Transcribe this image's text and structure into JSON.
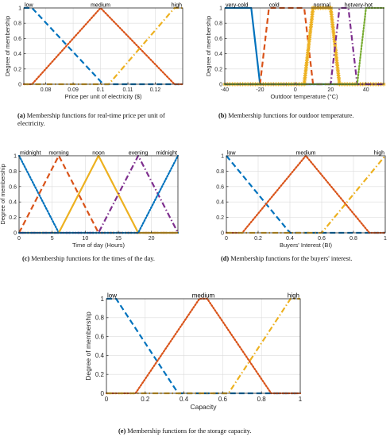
{
  "figure": {
    "panels": [
      {
        "id": "a",
        "caption_label": "(a)",
        "caption_text": "Membership functions for real-time price per unit of electricity.",
        "caption_lines": [
          "(a) Membership functions for real-time price per unit of",
          "electricity."
        ],
        "chart_data": {
          "type": "line",
          "xlabel": "Price per unit of electricity ($)",
          "ylabel": "Degree of membership",
          "xlim": [
            0.072,
            0.13
          ],
          "ylim": [
            0,
            1
          ],
          "xticks": [
            0.08,
            0.09,
            0.1,
            0.11,
            0.12
          ],
          "xtick_labels": [
            "0.08",
            "0.09",
            "0.1",
            "0.11",
            "0.12"
          ],
          "yticks": [
            0,
            0.2,
            0.4,
            0.6,
            0.8,
            1
          ],
          "ytick_labels": [
            "0",
            "0.2",
            "0.4",
            "0.6",
            "0.8",
            "1"
          ],
          "grid": true,
          "legend": "none",
          "series": [
            {
              "name": "low",
              "color": "#0072BD",
              "style": "dash",
              "x": [
                0.072,
                0.075,
                0.101,
                0.13
              ],
              "y": [
                1,
                1,
                0,
                0
              ]
            },
            {
              "name": "medium",
              "color": "#D95319",
              "style": "dot",
              "x": [
                0.072,
                0.075,
                0.1,
                0.1,
                0.127,
                0.13
              ],
              "y": [
                0,
                0,
                1,
                1,
                0,
                0
              ]
            },
            {
              "name": "high",
              "color": "#EDB120",
              "style": "dashdot",
              "x": [
                0.072,
                0.103,
                0.127,
                0.13
              ],
              "y": [
                0,
                0,
                1,
                1
              ]
            }
          ],
          "annotations": [
            {
              "text": "low",
              "x": 0.072,
              "y": 1
            },
            {
              "text": "medium",
              "x": 0.1,
              "y": 1
            },
            {
              "text": "high",
              "x": 0.127,
              "y": 1
            }
          ]
        }
      },
      {
        "id": "b",
        "caption_label": "(b)",
        "caption_text": "Membership functions for outdoor temperature.",
        "caption_lines": [
          "(b) Membership functions for outdoor temperature."
        ],
        "chart_data": {
          "type": "line",
          "xlabel": "Outdoor temperature (°C)",
          "ylabel": "Degree of membership",
          "xlim": [
            -40,
            50
          ],
          "ylim": [
            0,
            1
          ],
          "xticks": [
            -40,
            -20,
            0,
            20,
            40
          ],
          "xtick_labels": [
            "-40",
            "-20",
            "0",
            "20",
            "40"
          ],
          "yticks": [
            0,
            0.2,
            0.4,
            0.6,
            0.8,
            1
          ],
          "ytick_labels": [
            "0",
            "0.2",
            "0.4",
            "0.6",
            "0.8",
            "1"
          ],
          "grid": true,
          "legend": "none",
          "series": [
            {
              "name": "very-cold",
              "color": "#0072BD",
              "style": "solid",
              "x": [
                -40,
                -25,
                -20,
                50
              ],
              "y": [
                1,
                1,
                0,
                0
              ]
            },
            {
              "name": "cold",
              "color": "#D95319",
              "style": "dash",
              "x": [
                -40,
                -20,
                -15,
                5,
                10,
                50
              ],
              "y": [
                0,
                0,
                1,
                1,
                0,
                0
              ]
            },
            {
              "name": "normal",
              "color": "#EDB120",
              "style": "star",
              "x": [
                -40,
                5,
                10,
                20,
                25,
                50
              ],
              "y": [
                0,
                0,
                1,
                1,
                0,
                0
              ]
            },
            {
              "name": "hot",
              "color": "#7E2F8E",
              "style": "dashdot",
              "x": [
                -40,
                20,
                25,
                30,
                35,
                50
              ],
              "y": [
                0,
                0,
                1,
                1,
                0,
                0
              ]
            },
            {
              "name": "very-hot",
              "color": "#77AC30",
              "style": "dot",
              "x": [
                -40,
                35,
                40,
                50
              ],
              "y": [
                0,
                0,
                1,
                1
              ]
            }
          ],
          "annotations": [
            {
              "text": "very-cold",
              "x": -40,
              "y": 1
            },
            {
              "text": "cold",
              "x": -12,
              "y": 1
            },
            {
              "text": "normal",
              "x": 15,
              "y": 1
            },
            {
              "text": "hot",
              "x": 30,
              "y": 1
            },
            {
              "text": "very-hot",
              "x": 38,
              "y": 1
            }
          ]
        }
      },
      {
        "id": "c",
        "caption_label": "(c)",
        "caption_text": "Membership functions for the times of the day.",
        "caption_lines": [
          "(c) Membership functions for the times of the day."
        ],
        "chart_data": {
          "type": "line",
          "xlabel": "Time of day (Hours)",
          "ylabel": "Degree of membership",
          "xlim": [
            0,
            24
          ],
          "ylim": [
            0,
            1
          ],
          "xticks": [
            0,
            5,
            10,
            15,
            20
          ],
          "xtick_labels": [
            "0",
            "5",
            "10",
            "15",
            "20"
          ],
          "yticks": [
            0,
            0.2,
            0.4,
            0.6,
            0.8,
            1
          ],
          "ytick_labels": [
            "0",
            "0.2",
            "0.4",
            "0.6",
            "0.8",
            "1"
          ],
          "grid": true,
          "legend": "none",
          "series": [
            {
              "name": "midnight (early)",
              "color": "#0072BD",
              "style": "dot",
              "x": [
                0,
                6,
                24
              ],
              "y": [
                1,
                0,
                0
              ]
            },
            {
              "name": "morning",
              "color": "#D95319",
              "style": "dash",
              "x": [
                0,
                6,
                12,
                24
              ],
              "y": [
                0,
                1,
                0,
                0
              ]
            },
            {
              "name": "noon",
              "color": "#EDB120",
              "style": "solid",
              "x": [
                0,
                6,
                12,
                18,
                24
              ],
              "y": [
                0,
                0,
                1,
                0,
                0
              ]
            },
            {
              "name": "evening",
              "color": "#7E2F8E",
              "style": "dashdot",
              "x": [
                0,
                12,
                18,
                24
              ],
              "y": [
                0,
                0,
                1,
                0
              ]
            },
            {
              "name": "midnight (late)",
              "color": "#0072BD",
              "style": "dot",
              "x": [
                0,
                18,
                24
              ],
              "y": [
                0,
                0,
                1
              ]
            }
          ],
          "annotations": [
            {
              "text": "midnight",
              "x": 0,
              "y": 1
            },
            {
              "text": "morning",
              "x": 6,
              "y": 1
            },
            {
              "text": "noon",
              "x": 12,
              "y": 1
            },
            {
              "text": "evening",
              "x": 18,
              "y": 1
            },
            {
              "text": "midnight",
              "x": 24,
              "y": 1
            }
          ]
        }
      },
      {
        "id": "d",
        "caption_label": "(d)",
        "caption_text": "Membership functions for the buyers' interest.",
        "caption_lines": [
          "(d) Membership functions for the buyers' interest."
        ],
        "chart_data": {
          "type": "line",
          "xlabel": "Buyers' Interest (BI)",
          "ylabel": "",
          "xlim": [
            0,
            1
          ],
          "ylim": [
            0,
            1
          ],
          "xticks": [
            0,
            0.2,
            0.4,
            0.6,
            0.8,
            1
          ],
          "xtick_labels": [
            "0",
            "0.2",
            "0.4",
            "0.6",
            "0.8",
            "1"
          ],
          "yticks": [
            0,
            0.2,
            0.4,
            0.6,
            0.8,
            1
          ],
          "ytick_labels": [
            "0",
            "0.2",
            "0.4",
            "0.6",
            "0.8",
            "1"
          ],
          "grid": true,
          "legend": "none",
          "series": [
            {
              "name": "low",
              "color": "#0072BD",
              "style": "dash",
              "x": [
                0,
                0.4,
                1
              ],
              "y": [
                1,
                0,
                0
              ]
            },
            {
              "name": "medium",
              "color": "#D95319",
              "style": "dot",
              "x": [
                0,
                0.1,
                0.5,
                0.9,
                1
              ],
              "y": [
                0,
                0,
                1,
                0,
                0
              ]
            },
            {
              "name": "high",
              "color": "#EDB120",
              "style": "dashdot",
              "x": [
                0,
                0.6,
                1
              ],
              "y": [
                0,
                0,
                1
              ]
            }
          ],
          "annotations": [
            {
              "text": "low",
              "x": 0,
              "y": 1
            },
            {
              "text": "medium",
              "x": 0.5,
              "y": 1
            },
            {
              "text": "high",
              "x": 1,
              "y": 1
            }
          ]
        }
      },
      {
        "id": "e",
        "caption_label": "(e)",
        "caption_text": "Membership functions for the storage capacity.",
        "caption_lines": [
          "(e) Membership functions for the storage capacity."
        ],
        "chart_data": {
          "type": "line",
          "xlabel": "Capacity",
          "ylabel": "Degree of membership",
          "xlim": [
            0,
            1
          ],
          "ylim": [
            0,
            1
          ],
          "xticks": [
            0,
            0.2,
            0.4,
            0.6,
            0.8,
            1
          ],
          "xtick_labels": [
            "0",
            "0.2",
            "0.4",
            "0.6",
            "0.8",
            "1"
          ],
          "yticks": [
            0,
            0.2,
            0.4,
            0.6,
            0.8,
            1
          ],
          "ytick_labels": [
            "0",
            "0.2",
            "0.4",
            "0.6",
            "0.8",
            "1"
          ],
          "grid": true,
          "legend": "none",
          "series": [
            {
              "name": "low",
              "color": "#0072BD",
              "style": "dash",
              "x": [
                0,
                0.05,
                0.37,
                1
              ],
              "y": [
                1,
                1,
                0,
                0
              ]
            },
            {
              "name": "medium",
              "color": "#D95319",
              "style": "dot",
              "x": [
                0,
                0.15,
                0.48,
                0.52,
                0.85,
                1
              ],
              "y": [
                0,
                0,
                1,
                1,
                0,
                0
              ]
            },
            {
              "name": "high",
              "color": "#EDB120",
              "style": "dashdot",
              "x": [
                0,
                0.63,
                0.95,
                1
              ],
              "y": [
                0,
                0,
                1,
                1
              ]
            }
          ],
          "annotations": [
            {
              "text": "low",
              "x": 0,
              "y": 1
            },
            {
              "text": "medium",
              "x": 0.5,
              "y": 1
            },
            {
              "text": "high",
              "x": 0.97,
              "y": 1
            }
          ]
        }
      }
    ]
  }
}
